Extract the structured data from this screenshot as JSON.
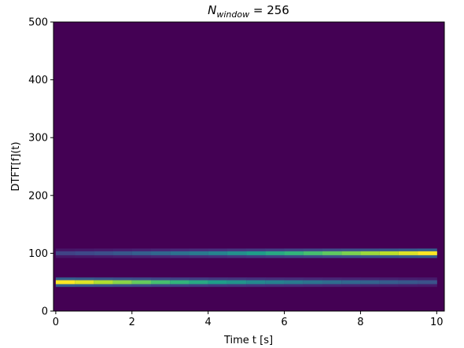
{
  "chart_data": {
    "type": "spectrogram",
    "title": [
      "N",
      "window",
      " = 256"
    ],
    "xlabel": "Time t [s]",
    "ylabel": "DTFT[f](t)",
    "colormap": "viridis",
    "x": [
      0.25,
      0.75,
      1.25,
      1.75,
      2.25,
      2.75,
      3.25,
      3.75,
      4.25,
      4.75,
      5.25,
      5.75,
      6.25,
      6.75,
      7.25,
      7.75,
      8.25,
      8.75,
      9.25,
      9.75
    ],
    "series": [
      {
        "frequency": 50,
        "values": [
          1.0,
          0.95,
          0.88,
          0.82,
          0.76,
          0.7,
          0.65,
          0.6,
          0.55,
          0.51,
          0.47,
          0.44,
          0.41,
          0.38,
          0.35,
          0.33,
          0.31,
          0.29,
          0.27,
          0.25
        ]
      },
      {
        "frequency": 100,
        "values": [
          0.2,
          0.22,
          0.24,
          0.27,
          0.3,
          0.33,
          0.37,
          0.41,
          0.45,
          0.5,
          0.55,
          0.6,
          0.65,
          0.7,
          0.75,
          0.8,
          0.85,
          0.9,
          0.95,
          1.0
        ]
      }
    ],
    "xlim": [
      -0.06,
      10.2
    ],
    "ylim": [
      0,
      500
    ],
    "xticks": [
      0,
      2,
      4,
      6,
      8,
      10
    ],
    "yticks": [
      0,
      100,
      200,
      300,
      400,
      500
    ]
  }
}
